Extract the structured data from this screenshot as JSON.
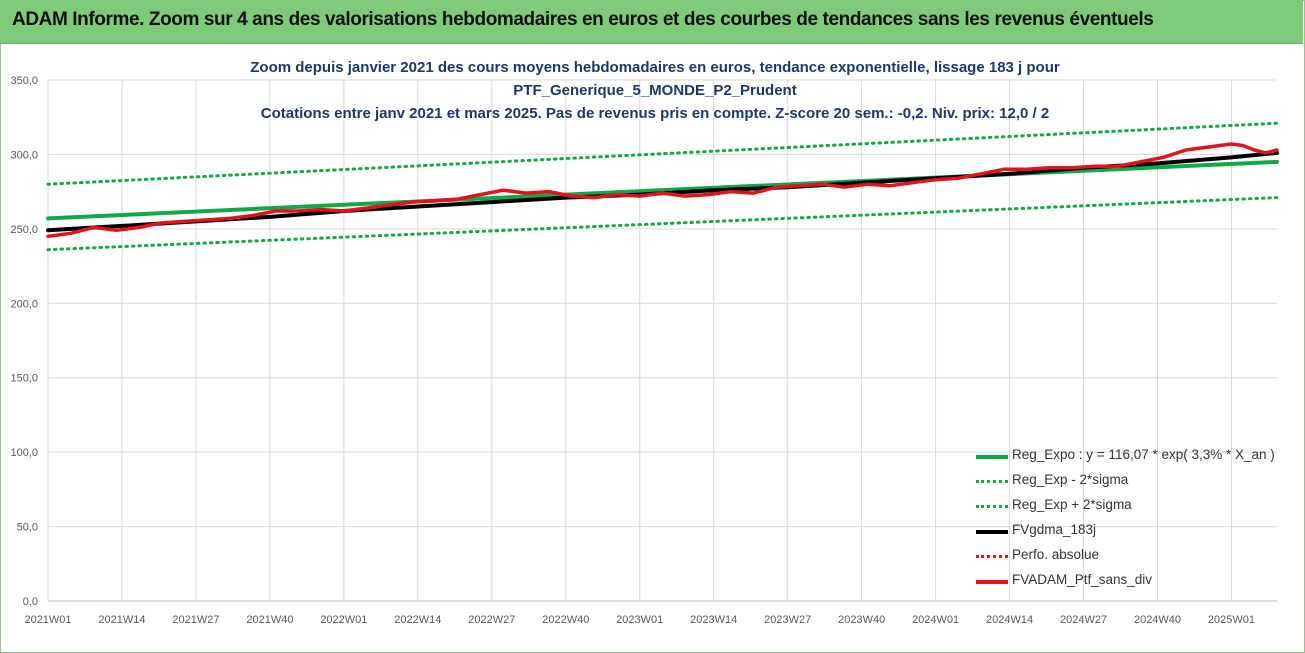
{
  "header": {
    "title": "ADAM Informe. Zoom sur 4 ans des valorisations hebdomadaires en euros et des courbes de tendances sans les revenus éventuels"
  },
  "chart_data": {
    "type": "line",
    "title_lines": [
      "Zoom depuis janvier 2021 des cours moyens hebdomadaires  en euros, tendance exponentielle, lissage 183 j pour",
      "PTF_Generique_5_MONDE_P2_Prudent",
      "Cotations  entre janv 2021 et mars 2025. Pas de revenus pris en compte. Z-score 20 sem.: -0,2. Niv. prix: 12,0 / 2"
    ],
    "xlabel": "",
    "ylabel": "",
    "ylim": [
      0,
      350
    ],
    "yticks": [
      "0,0",
      "50,0",
      "100,0",
      "150,0",
      "200,0",
      "250,0",
      "300,0",
      "350,0"
    ],
    "ytick_values": [
      0,
      50,
      100,
      150,
      200,
      250,
      300,
      350
    ],
    "xticks": [
      "2021W01",
      "2021W14",
      "2021W27",
      "2021W40",
      "2022W01",
      "2022W14",
      "2022W27",
      "2022W40",
      "2023W01",
      "2023W14",
      "2023W27",
      "2023W40",
      "2024W01",
      "2024W14",
      "2024W27",
      "2024W40",
      "2025W01"
    ],
    "x_range_weeks": [
      0,
      216
    ],
    "grid": "vertical",
    "legend_position": "bottom-right",
    "series": [
      {
        "name": "Reg_Expo : y = 116,07 * exp( 3,3% *  X_an )",
        "style": "solid",
        "color": "#12a84a",
        "x": [
          0,
          216
        ],
        "values": [
          257,
          295
        ]
      },
      {
        "name": "Reg_Exp - 2*sigma",
        "style": "dotted",
        "color": "#12a84a",
        "x": [
          0,
          216
        ],
        "values": [
          236,
          271
        ]
      },
      {
        "name": "Reg_Exp + 2*sigma",
        "style": "dotted",
        "color": "#12a84a",
        "x": [
          0,
          216
        ],
        "values": [
          280,
          321
        ]
      },
      {
        "name": "FVgdma_183j",
        "style": "solid",
        "color": "#000000",
        "x": [
          0,
          13,
          26,
          39,
          52,
          65,
          78,
          91,
          104,
          117,
          130,
          143,
          156,
          169,
          182,
          195,
          208,
          216
        ],
        "values": [
          249,
          252,
          255,
          258,
          262,
          265,
          268,
          271,
          273,
          276,
          278,
          281,
          284,
          287,
          291,
          294,
          298,
          301
        ]
      },
      {
        "name": "Perfo. absolue",
        "style": "dotted",
        "color": "#e3131b",
        "x": [],
        "values": []
      },
      {
        "name": "FVADAM_Ptf_sans_div",
        "style": "solid",
        "color": "#e3131b",
        "x": [
          0,
          4,
          8,
          12,
          16,
          20,
          24,
          28,
          32,
          36,
          40,
          44,
          48,
          52,
          56,
          60,
          64,
          68,
          72,
          76,
          80,
          84,
          88,
          92,
          96,
          100,
          104,
          108,
          112,
          116,
          120,
          124,
          128,
          132,
          136,
          140,
          144,
          148,
          152,
          156,
          160,
          164,
          168,
          172,
          176,
          180,
          184,
          188,
          192,
          196,
          200,
          204,
          208,
          210,
          212,
          214,
          216
        ],
        "values": [
          245,
          247,
          251,
          249,
          251,
          254,
          255,
          256,
          257,
          259,
          262,
          262,
          263,
          262,
          264,
          266,
          268,
          269,
          270,
          273,
          276,
          274,
          275,
          272,
          271,
          273,
          272,
          274,
          272,
          273,
          275,
          274,
          278,
          279,
          280,
          278,
          280,
          279,
          281,
          283,
          284,
          287,
          290,
          290,
          291,
          291,
          292,
          292,
          295,
          298,
          303,
          305,
          307,
          306,
          303,
          301,
          303
        ]
      }
    ]
  },
  "colors": {
    "header_bg": "#7fc97a",
    "title_text": "#1f3864",
    "reg_green": "#12a84a",
    "adam_red": "#e3131b",
    "fv_black": "#000000"
  }
}
